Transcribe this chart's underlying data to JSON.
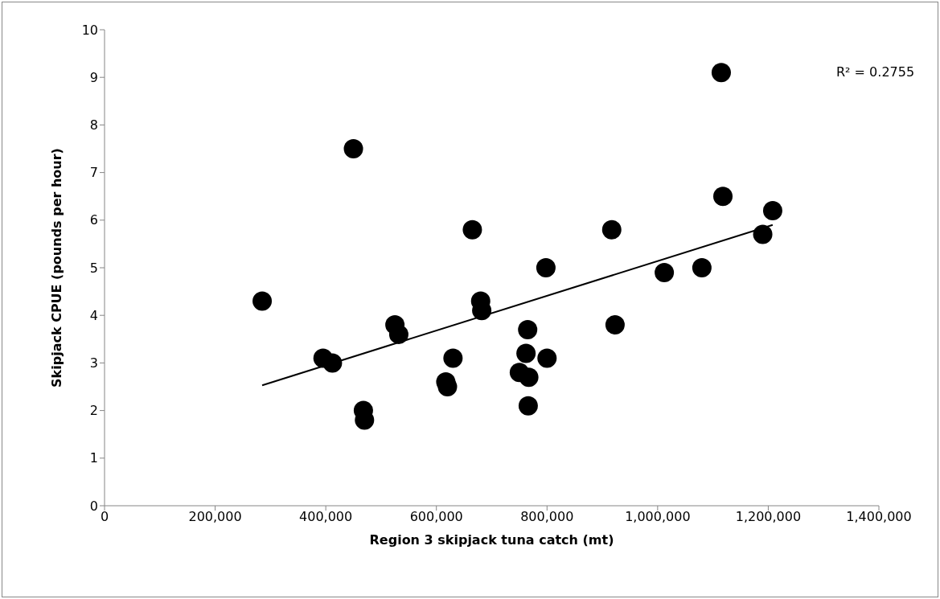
{
  "chart_data": {
    "type": "scatter",
    "xlabel": "Region 3 skipjack tuna catch (mt)",
    "ylabel": "Skipjack CPUE (pounds per hour)",
    "annotations": [
      "R² = 0.2755"
    ],
    "marker": "circle",
    "grid": false,
    "series": [
      {
        "color": "#000000",
        "x": [
          285000,
          395000,
          412000,
          450000,
          468000,
          470000,
          525000,
          532000,
          617000,
          620000,
          630000,
          665000,
          680000,
          682000,
          750000,
          762000,
          765000,
          767000,
          766000,
          798000,
          800000,
          917000,
          923000,
          1012000,
          1080000,
          1115000,
          1118000,
          1190000,
          1208000
        ],
        "values": [
          4.3,
          3.1,
          3.0,
          7.5,
          2.0,
          1.8,
          3.8,
          3.6,
          2.6,
          2.5,
          3.1,
          5.8,
          4.3,
          4.1,
          2.8,
          3.2,
          3.7,
          2.7,
          2.1,
          5.0,
          3.1,
          5.8,
          3.8,
          4.9,
          5.0,
          9.1,
          6.5,
          5.7,
          6.2
        ]
      },
      {
        "type": "line",
        "color": "#000000",
        "marker": "none",
        "x": [
          285000,
          1208000
        ],
        "values": [
          2.53,
          5.9
        ]
      }
    ],
    "xlim": [
      0,
      1400000
    ],
    "xticks": [
      {
        "value": 0,
        "label": "0"
      },
      {
        "value": 200000,
        "label": "200,000"
      },
      {
        "value": 400000,
        "label": "400,000"
      },
      {
        "value": 600000,
        "label": "600,000"
      },
      {
        "value": 800000,
        "label": "800,000"
      },
      {
        "value": 1000000,
        "label": "1,000,000"
      },
      {
        "value": 1200000,
        "label": "1,200,000"
      },
      {
        "value": 1400000,
        "label": "1,400,000"
      }
    ],
    "ylim": [
      0,
      10
    ],
    "yticks": [
      0,
      1,
      2,
      3,
      4,
      5,
      6,
      7,
      8,
      9,
      10
    ]
  }
}
